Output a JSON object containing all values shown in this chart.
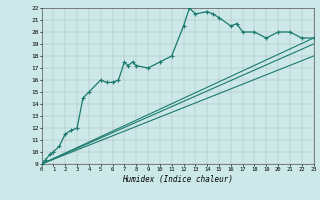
{
  "title": "",
  "xlabel": "Humidex (Indice chaleur)",
  "bg_color": "#cce8e8",
  "line_color": "#1a7a6e",
  "xlim": [
    0,
    23
  ],
  "ylim": [
    9,
    22
  ],
  "xticks": [
    0,
    1,
    2,
    3,
    4,
    5,
    6,
    7,
    8,
    9,
    10,
    11,
    12,
    13,
    14,
    15,
    16,
    17,
    18,
    19,
    20,
    21,
    22,
    23
  ],
  "yticks": [
    9,
    10,
    11,
    12,
    13,
    14,
    15,
    16,
    17,
    18,
    19,
    20,
    21,
    22
  ],
  "main_x": [
    0,
    0.3,
    0.7,
    1.0,
    1.5,
    2.0,
    2.5,
    3.0,
    3.5,
    4.0,
    5.0,
    5.5,
    6.0,
    6.5,
    7.0,
    7.3,
    7.7,
    8.0,
    9.0,
    10.0,
    11.0,
    12.0,
    12.5,
    13.0,
    14.0,
    14.5,
    15.0,
    16.0,
    16.5,
    17.0,
    18.0,
    19.0,
    20.0,
    21.0,
    22.0,
    23.0
  ],
  "main_y": [
    9.0,
    9.3,
    9.8,
    10.0,
    10.5,
    11.5,
    11.8,
    12.0,
    14.5,
    15.0,
    16.0,
    15.8,
    15.8,
    16.0,
    17.5,
    17.2,
    17.5,
    17.2,
    17.0,
    17.5,
    18.0,
    20.5,
    22.0,
    21.5,
    21.7,
    21.5,
    21.2,
    20.5,
    20.7,
    20.0,
    20.0,
    19.5,
    20.0,
    20.0,
    19.5,
    19.5
  ],
  "line1_x": [
    0,
    23
  ],
  "line1_y": [
    9.0,
    19.5
  ],
  "line2_x": [
    0,
    23
  ],
  "line2_y": [
    9.0,
    18.0
  ],
  "line3_x": [
    0,
    23
  ],
  "line3_y": [
    9.0,
    19.0
  ]
}
